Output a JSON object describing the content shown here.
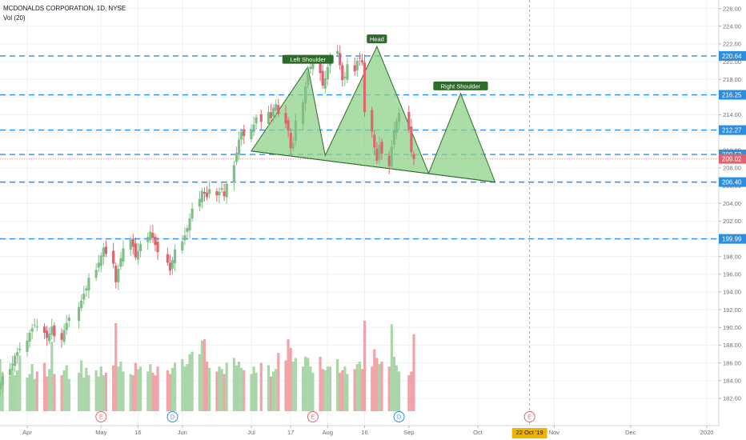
{
  "legend": {
    "title": "MCDONALDS CORPORATION, 1D, NYSE",
    "indicator": "Vol (20)"
  },
  "colors": {
    "up": "#7fbf86",
    "down": "#e06470",
    "vol_up": "#a9d6a8",
    "vol_down": "#f2a3a8",
    "hline": "#2d8de0",
    "pattern_fill": "#8fd18a",
    "pattern_stroke": "#2e6b2a",
    "label_bg": "#2e6b2a",
    "price_line": "#e06470",
    "date_line": "#f0b400",
    "axis_text": "#6a6d78",
    "grid": "#eef0f3"
  },
  "chart_data": {
    "type": "candlestick",
    "y_range": [
      180,
      226.5
    ],
    "y_ticks": [
      "226.00",
      "224.00",
      "222.00",
      "220.00",
      "218.00",
      "216.00",
      "214.00",
      "212.00",
      "210.00",
      "208.00",
      "206.00",
      "204.00",
      "202.00",
      "200.00",
      "198.00",
      "196.00",
      "194.00",
      "192.00",
      "190.00",
      "188.00",
      "186.00",
      "184.00",
      "182.00"
    ],
    "x_labels": [
      {
        "label": "Apr",
        "date": "2019-04-01"
      },
      {
        "label": "May",
        "date": "2019-05-01"
      },
      {
        "label": "16",
        "date": "2019-05-16"
      },
      {
        "label": "Jun",
        "date": "2019-06-03"
      },
      {
        "label": "Jul",
        "date": "2019-07-01"
      },
      {
        "label": "17",
        "date": "2019-07-17"
      },
      {
        "label": "Aug",
        "date": "2019-08-01"
      },
      {
        "label": "16",
        "date": "2019-08-16"
      },
      {
        "label": "Sep",
        "date": "2019-09-03"
      },
      {
        "label": "Oct",
        "date": "2019-10-01"
      },
      {
        "label": "Nov",
        "date": "2019-11-01"
      },
      {
        "label": "Dec",
        "date": "2019-12-02"
      },
      {
        "label": "2020",
        "date": "2020-01-02"
      }
    ],
    "date_marker": {
      "label": "22 Oct '19",
      "date": "2019-10-22"
    },
    "last_price": {
      "value": 209.02,
      "label": "209.02"
    },
    "horizontal_levels": [
      {
        "value": 220.64,
        "label": "220.64"
      },
      {
        "value": 216.25,
        "label": "216.25"
      },
      {
        "value": 212.27,
        "label": "212.27"
      },
      {
        "value": 209.52,
        "label": "209.52"
      },
      {
        "value": 206.4,
        "label": "206.40"
      },
      {
        "value": 199.99,
        "label": "199.99"
      }
    ],
    "pattern": {
      "name": "head and shoulders",
      "points": [
        {
          "date": "2019-07-01",
          "price": 209.9
        },
        {
          "date": "2019-07-24",
          "price": 219.4
        },
        {
          "date": "2019-07-31",
          "price": 209.4
        },
        {
          "date": "2019-08-21",
          "price": 221.7
        },
        {
          "date": "2019-09-11",
          "price": 207.4
        },
        {
          "date": "2019-09-24",
          "price": 216.4
        },
        {
          "date": "2019-10-08",
          "price": 206.4
        }
      ],
      "neckline_start": {
        "date": "2019-07-01",
        "price": 209.9
      },
      "labels": [
        {
          "text": "Left Shoulder",
          "date": "2019-07-24",
          "price": 219.4
        },
        {
          "text": "Head",
          "date": "2019-08-21",
          "price": 221.7
        },
        {
          "text": "Right Shoulder",
          "date": "2019-09-24",
          "price": 216.4
        }
      ]
    },
    "events": [
      {
        "date": "2019-05-01",
        "glyph": "E",
        "kind": "earnings"
      },
      {
        "date": "2019-05-30",
        "glyph": "D",
        "kind": "dividend"
      },
      {
        "date": "2019-07-26",
        "glyph": "E",
        "kind": "earnings"
      },
      {
        "date": "2019-08-30",
        "glyph": "D",
        "kind": "dividend"
      },
      {
        "date": "2019-10-22",
        "glyph": "E",
        "kind": "earnings"
      }
    ],
    "candles": {
      "start_date": "2019-03-21",
      "closes": [
        183.6,
        184.5,
        185.3,
        185.9,
        186.8,
        187.2,
        187.6,
        188.5,
        189.4,
        189.9,
        190.3,
        190.1,
        189.4,
        188.8,
        189.3,
        190.1,
        189.0,
        188.6,
        189.7,
        190.5,
        191.1,
        192.3,
        193.0,
        193.8,
        194.4,
        195.6,
        196.5,
        197.3,
        198.1,
        199.0,
        198.3,
        197.2,
        195.1,
        196.6,
        197.8,
        198.9,
        199.9,
        199.1,
        197.9,
        198.6,
        199.4,
        200.2,
        200.8,
        200.1,
        199.3,
        198.5,
        197.3,
        196.4,
        197.6,
        198.8,
        199.7,
        200.4,
        201.2,
        202.3,
        203.4,
        204.5,
        205.4,
        205.1,
        204.7,
        205.6,
        204.9,
        205.3,
        205.7,
        204.8,
        206.2,
        208.3,
        209.7,
        211.2,
        212.1,
        211.6,
        212.2,
        212.9,
        213.7,
        213.2,
        214.3,
        213.6,
        214.8,
        215.2,
        214.1,
        213.0,
        212.2,
        210.2,
        210.8,
        213.3,
        215.4,
        217.2,
        218.8,
        219.4,
        220.2,
        218.7,
        217.3,
        218.1,
        219.4,
        220.5,
        221.2,
        219.6,
        217.9,
        218.3,
        219.7,
        218.9,
        220.1,
        220.4,
        219.9,
        214.3,
        212.1,
        210.3,
        208.8,
        210.6,
        209.6,
        208.2,
        210.4,
        212.3,
        213.3,
        214.2,
        212.3,
        209.8,
        209.0
      ],
      "volumes": [
        4.2,
        3.1,
        2.8,
        3.6,
        2.9,
        3.3,
        4.5,
        2.7,
        3.0,
        3.8,
        2.6,
        3.2,
        3.9,
        2.8,
        3.4,
        5.6,
        3.0,
        2.9,
        3.3,
        3.7,
        2.6,
        3.1,
        4.1,
        2.7,
        3.5,
        2.9,
        3.3,
        2.8,
        3.6,
        2.9,
        3.1,
        3.7,
        7.1,
        3.6,
        4.0,
        3.2,
        3.0,
        2.9,
        3.9,
        3.4,
        3.6,
        3.2,
        3.8,
        3.1,
        2.9,
        3.6,
        3.3,
        3.0,
        3.5,
        3.9,
        4.2,
        3.6,
        3.8,
        4.6,
        4.8,
        4.6,
        5.7,
        5.8,
        4.0,
        3.5,
        3.2,
        3.6,
        3.4,
        3.0,
        3.9,
        4.3,
        3.7,
        4.0,
        3.5,
        3.3,
        3.0,
        3.6,
        3.1,
        3.9,
        3.7,
        2.8,
        3.2,
        3.4,
        4.7,
        4.1,
        5.8,
        5.1,
        4.0,
        4.3,
        3.6,
        4.4,
        4.3,
        3.6,
        3.1,
        4.4,
        3.4,
        3.3,
        3.6,
        3.6,
        4.2,
        3.1,
        3.3,
        3.6,
        3.0,
        3.4,
        3.8,
        4.0,
        3.4,
        7.3,
        3.6,
        5.0,
        4.3,
        3.8,
        4.0,
        3.6,
        7.0,
        4.4,
        3.7,
        3.2,
        2.9,
        3.2,
        6.2
      ]
    }
  }
}
